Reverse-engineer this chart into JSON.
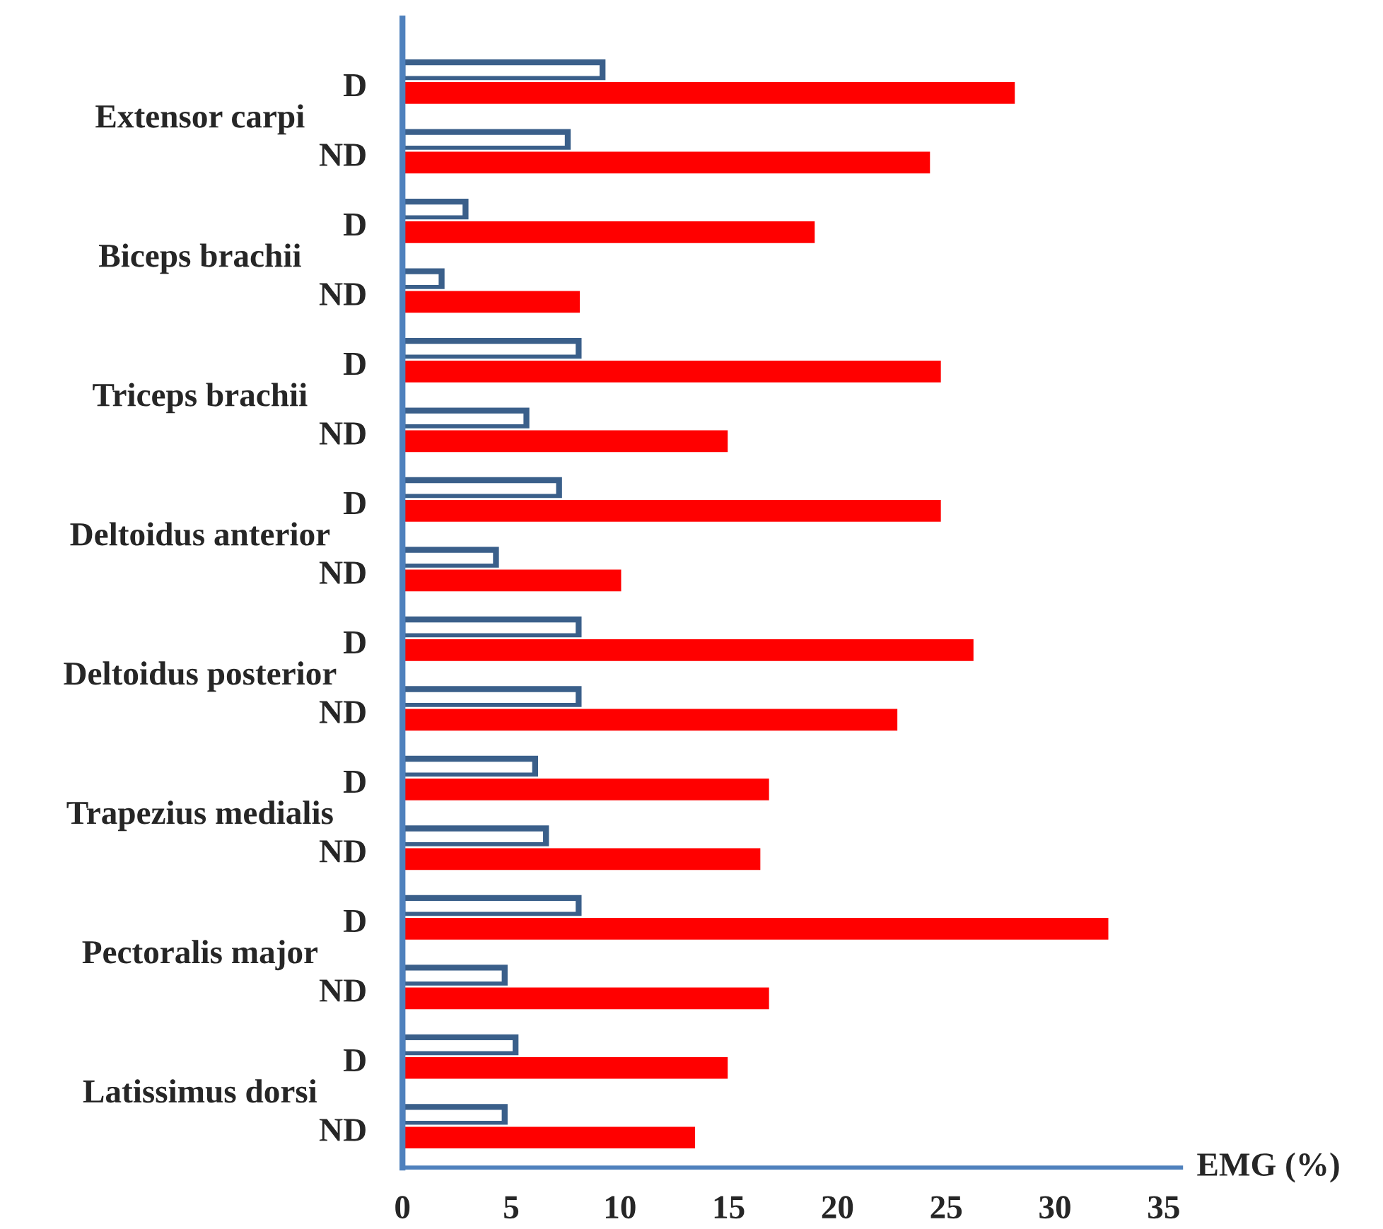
{
  "chart_data": {
    "type": "bar",
    "orientation": "horizontal",
    "xlabel": "EMG (%)",
    "categories": [
      "D",
      "ND",
      "D",
      "ND",
      "D",
      "ND",
      "D",
      "ND",
      "D",
      "ND",
      "D",
      "ND",
      "D",
      "ND",
      "D",
      "ND"
    ],
    "series": [
      {
        "color": "#3a5f8a",
        "values": [
          9.2,
          7.6,
          2.9,
          1.8,
          8.1,
          5.7,
          7.2,
          4.3,
          8.1,
          8.1,
          6.1,
          6.6,
          8.1,
          4.7,
          5.2,
          4.7
        ]
      },
      {
        "color": "#ff0000",
        "values": [
          28.2,
          24.3,
          19.0,
          8.2,
          24.8,
          15.0,
          24.8,
          10.1,
          26.3,
          22.8,
          16.9,
          16.5,
          32.5,
          16.9,
          15.0,
          13.5
        ]
      }
    ],
    "annotations": [
      "Extensor carpi",
      "Biceps brachii",
      "Triceps brachii",
      "Deltoidus anterior",
      "Deltoidus posterior",
      "Trapezius medialis",
      "Pectoralis major",
      "Latissimus dorsi"
    ],
    "xlim": [
      0,
      35.8
    ],
    "xticks": [
      0,
      5,
      10,
      15,
      20,
      25,
      30,
      35
    ],
    "grid": false,
    "legend": false
  }
}
